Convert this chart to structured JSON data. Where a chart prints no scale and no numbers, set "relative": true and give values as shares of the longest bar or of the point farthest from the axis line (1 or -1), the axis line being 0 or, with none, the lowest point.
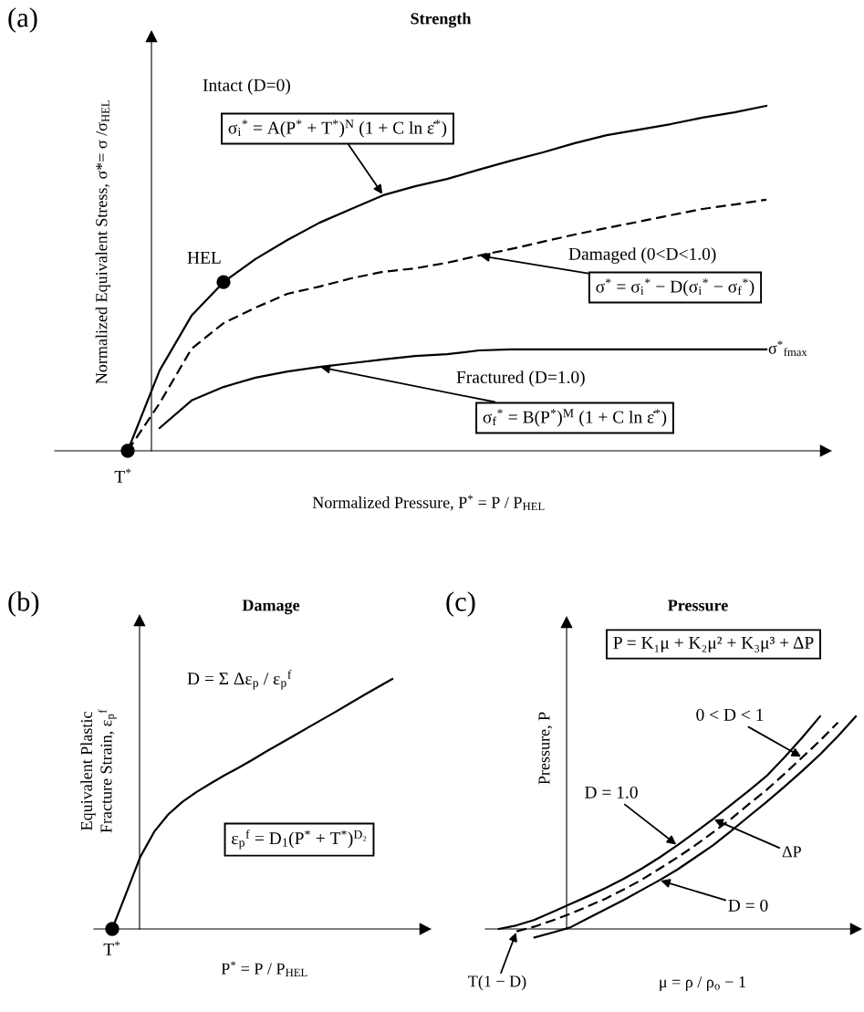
{
  "chart_data": [
    {
      "type": "line",
      "relative": true,
      "title": "Strength",
      "xlabel": "Normalized Pressure, P$^{*}$ = P / P$_{HEL}$",
      "ylabel": "Normalized Equivalent Stress, σ*= σ /σ$_{HEL}$",
      "categories": [
        null,
        null,
        null,
        null,
        null,
        null,
        null,
        null,
        null,
        null,
        null,
        null,
        null,
        null,
        null,
        null,
        null,
        null,
        null,
        null,
        null
      ],
      "series": [
        {
          "color": "#000000",
          "line_style": "solid",
          "values": [
            0,
            0.233,
            0.392,
            0.489,
            0.556,
            0.611,
            0.661,
            0.701,
            0.741,
            0.767,
            0.788,
            0.815,
            0.841,
            0.865,
            0.892,
            0.915,
            0.931,
            0.947,
            0.966,
            0.981,
            1
          ]
        },
        {
          "name": "Damaged (0<D<1.0)",
          "color": "#000000",
          "line_style": "dashed",
          "values": [
            0,
            0.138,
            0.296,
            0.37,
            0.415,
            0.455,
            0.476,
            0.5,
            0.519,
            0.529,
            0.545,
            0.566,
            0.585,
            0.606,
            0.627,
            0.646,
            0.664,
            0.683,
            0.701,
            0.714,
            0.728
          ]
        },
        {
          "name": "Fractured (D=1.0)",
          "color": "#000000",
          "line_style": "solid",
          "values": [
            null,
            0.066,
            0.146,
            0.185,
            0.212,
            0.23,
            0.243,
            0.254,
            0.265,
            0.275,
            0.28,
            0.291,
            0.294,
            0.294,
            0.294,
            0.294,
            0.294,
            0.294,
            0.294,
            0.294,
            0.294
          ]
        }
      ],
      "annotations": [
        "(a)",
        "σ$_{i}$$^{*}$ = A(P$^{*}$ + T$^{*}$)$^{N}$ (1 + C ln ε̇$^{*}$)",
        "σ$^{*}$ = σ$_{i}$$^{*}$ − D(σ$_{i}$$^{*}$ − σ$_{f}$$^{*}$)",
        "σ$_{f}$$^{*}$ = B(P$^{*}$)$^{M}$ (1 + C ln ε̇$^{*}$)",
        "σ$^{*}$$_{fmax}$",
        "HEL",
        "T$^{*}$",
        "Intact (D=0)"
      ]
    },
    {
      "type": "line",
      "relative": true,
      "title": "Damage",
      "xlabel": "P$^{*}$ = P / P$_{HEL}$",
      "ylabel": "Equivalent Plastic\nFracture Strain, ε$_{p}$$^{f}$",
      "categories": [
        null,
        null,
        null,
        null,
        null,
        null,
        null,
        null,
        null,
        null,
        null,
        null,
        null,
        null,
        null,
        null,
        null,
        null,
        null,
        null,
        null
      ],
      "series": [
        {
          "color": "#000000",
          "line_style": "solid",
          "values": [
            0,
            0.143,
            0.288,
            0.389,
            0.458,
            0.508,
            0.547,
            0.581,
            0.614,
            0.644,
            0.676,
            0.71,
            0.742,
            0.774,
            0.806,
            0.838,
            0.87,
            0.903,
            0.936,
            0.968,
            1
          ]
        }
      ],
      "annotations": [
        "(b)",
        "D = Σ Δε$_{p}$ / ε$_{p}$$^{f}$",
        "ε$_{p}$$^{f}$ = D$_{1}$(P$^{*}$ + T$^{*}$)$^{D₂}$",
        "T$^{*}$"
      ]
    },
    {
      "type": "line",
      "relative": true,
      "title": "Pressure",
      "xlabel": "μ = ρ / ρ$_{o}$ − 1",
      "ylabel": "Pressure, P",
      "categories": [
        null,
        null,
        null,
        null,
        null,
        null,
        null,
        null,
        null,
        null,
        null,
        null,
        null,
        null,
        null,
        null,
        null,
        null,
        null,
        null,
        null
      ],
      "series": [
        {
          "color": "#000000",
          "line_style": "solid",
          "values": [
            0,
            0.017,
            0.043,
            0.079,
            0.117,
            0.154,
            0.193,
            0.236,
            0.283,
            0.336,
            0.393,
            0.454,
            0.517,
            0.583,
            0.65,
            0.719,
            0.807,
            0.9,
            1,
            null,
            null
          ]
        },
        {
          "color": "#000000",
          "line_style": "dashed",
          "values": [
            null,
            -0.011,
            0.011,
            0.04,
            0.071,
            0.107,
            0.143,
            0.186,
            0.231,
            0.283,
            0.336,
            0.393,
            0.454,
            0.517,
            0.586,
            0.654,
            0.729,
            0.807,
            0.886,
            0.971,
            null
          ]
        },
        {
          "color": "#000000",
          "line_style": "solid",
          "values": [
            null,
            null,
            -0.04,
            -0.017,
            0.007,
            0.05,
            0.093,
            0.136,
            0.183,
            0.229,
            0.279,
            0.336,
            0.393,
            0.46,
            0.529,
            0.597,
            0.669,
            0.743,
            0.821,
            0.907,
            1
          ]
        }
      ],
      "annotations": [
        "(c)",
        "P = K₁μ + K₂μ² + K₃μ³ + ΔP",
        "ΔP",
        "T(1 − D)",
        "D = 1.0",
        "0 < D < 1",
        "D = 0"
      ]
    }
  ]
}
